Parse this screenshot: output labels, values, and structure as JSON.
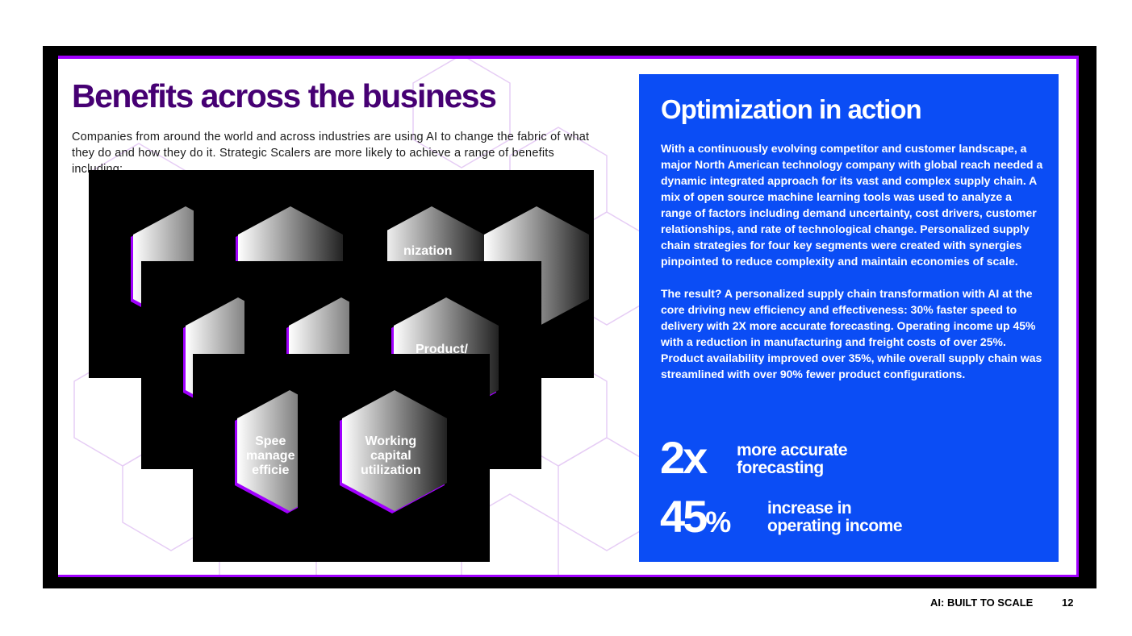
{
  "left": {
    "title": "Benefits across the business",
    "intro": "Companies from around the world and across industries are using AI to change the fabric of what they do and how they do it. Strategic Scalers are more likely to achieve a range of benefits including:",
    "hex_labels": {
      "optimization": "nization",
      "product": "Product/",
      "speed": "Spee\nmanage\nefficie",
      "working_capital": "Working\ncapital\nutilization"
    }
  },
  "panel": {
    "title": "Optimization in action",
    "paragraph1": "With a continuously evolving competitor and customer landscape, a major North American technology company with global reach needed a dynamic integrated approach for its vast and complex supply chain. A mix of open source machine learning tools was used to analyze a range of factors including demand uncertainty, cost drivers, customer relationships, and rate of technological change. Personalized supply chain strategies for four key segments were created with synergies pinpointed to reduce complexity and maintain economies of scale.",
    "paragraph2": "The result? A personalized supply chain transformation with AI at the core driving new efficiency and effectiveness: 30% faster speed to delivery with 2X more accurate forecasting. Operating income up 45% with a reduction in manufacturing and freight costs of over 25%. Product availability improved over 35%, while overall supply chain was streamlined with over 90% fewer product configurations.",
    "stat1_value": "2x",
    "stat1_label_line1": "more accurate",
    "stat1_label_line2": "forecasting",
    "stat2_value": "45",
    "stat2_unit": "%",
    "stat2_label_line1": "increase in",
    "stat2_label_line2": "operating income"
  },
  "footer": {
    "doc_title": "AI: BUILT TO SCALE",
    "page_number": "12"
  },
  "colors": {
    "title_purple": "#460073",
    "accent_purple": "#a100ff",
    "panel_blue": "#0b4df5"
  }
}
